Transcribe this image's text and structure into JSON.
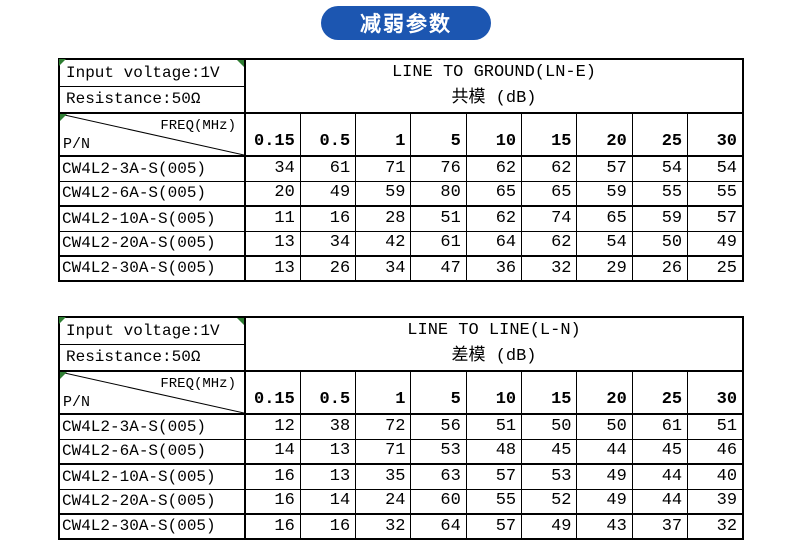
{
  "title": "减弱参数",
  "colors": {
    "badge_blue": "#1c56b1",
    "marker_green": "#2e7d32",
    "border": "#000000",
    "background": "#ffffff"
  },
  "tables": [
    {
      "info_line1": "Input voltage:1V",
      "info_line2": "Resistance:50Ω",
      "header_line1": "LINE TO GROUND(LN-E)",
      "header_line2": "共模 (dB)",
      "diag_top": "FREQ(MHz)",
      "diag_bottom": "P/N",
      "frequencies": [
        "0.15",
        "0.5",
        "1",
        "5",
        "10",
        "15",
        "20",
        "25",
        "30"
      ],
      "rows": [
        {
          "pn": "CW4L2-3A-S(005)",
          "values": [
            34,
            61,
            71,
            76,
            62,
            62,
            57,
            54,
            54
          ]
        },
        {
          "pn": "CW4L2-6A-S(005)",
          "values": [
            20,
            49,
            59,
            80,
            65,
            65,
            59,
            55,
            55
          ]
        },
        {
          "pn": "CW4L2-10A-S(005)",
          "values": [
            11,
            16,
            28,
            51,
            62,
            74,
            65,
            59,
            57
          ]
        },
        {
          "pn": "CW4L2-20A-S(005)",
          "values": [
            13,
            34,
            42,
            61,
            64,
            62,
            54,
            50,
            49
          ]
        },
        {
          "pn": "CW4L2-30A-S(005)",
          "values": [
            13,
            26,
            34,
            47,
            36,
            32,
            29,
            26,
            25
          ]
        }
      ]
    },
    {
      "info_line1": "Input voltage:1V",
      "info_line2": "Resistance:50Ω",
      "header_line1": "LINE TO LINE(L-N)",
      "header_line2": "差模 (dB)",
      "diag_top": "FREQ(MHz)",
      "diag_bottom": "P/N",
      "frequencies": [
        "0.15",
        "0.5",
        "1",
        "5",
        "10",
        "15",
        "20",
        "25",
        "30"
      ],
      "rows": [
        {
          "pn": "CW4L2-3A-S(005)",
          "values": [
            12,
            38,
            72,
            56,
            51,
            50,
            50,
            61,
            51
          ]
        },
        {
          "pn": "CW4L2-6A-S(005)",
          "values": [
            14,
            13,
            71,
            53,
            48,
            45,
            44,
            45,
            46
          ]
        },
        {
          "pn": "CW4L2-10A-S(005)",
          "values": [
            16,
            13,
            35,
            63,
            57,
            53,
            49,
            44,
            40
          ]
        },
        {
          "pn": "CW4L2-20A-S(005)",
          "values": [
            16,
            14,
            24,
            60,
            55,
            52,
            49,
            44,
            39
          ]
        },
        {
          "pn": "CW4L2-30A-S(005)",
          "values": [
            16,
            16,
            32,
            64,
            57,
            49,
            43,
            37,
            32
          ]
        }
      ]
    }
  ]
}
